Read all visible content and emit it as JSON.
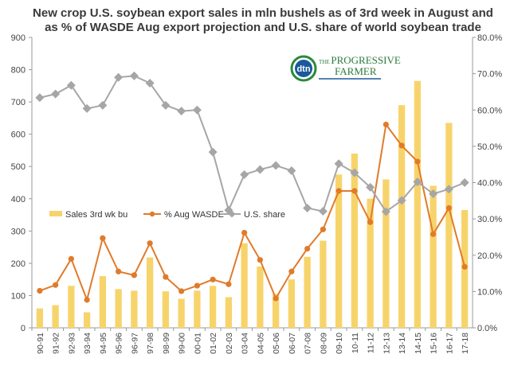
{
  "chart_data": {
    "type": "bar",
    "title_lines": [
      "New crop U.S. soybean export sales in mln bushels as of 3rd week in August and",
      "as %  of WASDE  Aug export projection and U.S. share of world soybean trade"
    ],
    "categories": [
      "90-91",
      "91-92",
      "92-93",
      "93-94",
      "94-95",
      "95-96",
      "96-97",
      "97-98",
      "98-99",
      "99-00",
      "00-01",
      "01-02",
      "02-03",
      "03-04",
      "04-05",
      "05-06",
      "06-07",
      "07-08",
      "08-09",
      "09-10",
      "10-11",
      "11-12",
      "12-13",
      "13-14",
      "14-15",
      "15-16",
      "16-17",
      "17-18"
    ],
    "left_axis": {
      "ylim": [
        0,
        900
      ],
      "ticks": [
        "0",
        "100",
        "200",
        "300",
        "400",
        "500",
        "600",
        "700",
        "800",
        "900"
      ]
    },
    "right_axis": {
      "ylim": [
        0,
        80
      ],
      "ticks": [
        "0.0%",
        "10.0%",
        "20.0%",
        "30.0%",
        "40.0%",
        "50.0%",
        "60.0%",
        "70.0%",
        "80.0%"
      ]
    },
    "series": [
      {
        "name": "Sales 3rd wk  bu",
        "kind": "bar",
        "axis": "left",
        "color": "#f7d46b",
        "values": [
          60,
          70,
          130,
          48,
          160,
          120,
          115,
          218,
          113,
          90,
          115,
          130,
          95,
          262,
          190,
          105,
          150,
          220,
          270,
          475,
          540,
          400,
          460,
          690,
          765,
          440,
          635,
          365
        ]
      },
      {
        "name": "% Aug WASDE",
        "kind": "line",
        "axis": "right",
        "color": "#e07b2a",
        "values": [
          10.2,
          11.8,
          19.0,
          7.7,
          24.7,
          15.5,
          14.5,
          23.3,
          14.0,
          10.1,
          11.6,
          13.3,
          12.0,
          26.2,
          18.7,
          8.1,
          15.5,
          21.8,
          27.1,
          37.7,
          37.7,
          29.1,
          56.0,
          50.2,
          45.8,
          25.8,
          33.0,
          16.8
        ]
      },
      {
        "name": "U.S. share",
        "kind": "line",
        "axis": "right",
        "color": "#a6a6a6",
        "values": [
          63.4,
          64.4,
          66.8,
          60.4,
          61.3,
          69.0,
          69.4,
          67.4,
          61.3,
          59.7,
          60.0,
          48.4,
          32.4,
          42.2,
          43.6,
          44.7,
          43.3,
          33.0,
          32.1,
          45.2,
          42.7,
          38.7,
          32.0,
          35.1,
          40.2,
          36.9,
          38.2,
          40.0
        ]
      }
    ],
    "legend_placement": "center-left",
    "grid": false,
    "logo": {
      "label": "dtn",
      "text": "THE PROGRESSIVE FARMER"
    }
  }
}
